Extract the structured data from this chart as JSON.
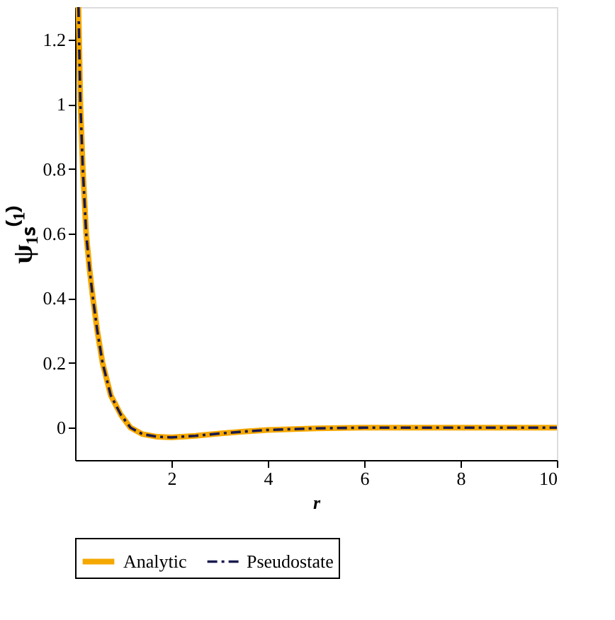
{
  "chart_data": {
    "type": "line",
    "xlabel": "r",
    "ylabel": "ψ₁ₛ⁽¹⁾",
    "xlim": [
      0,
      10
    ],
    "ylim": [
      -0.1,
      1.3
    ],
    "xticks": [
      2,
      4,
      6,
      8,
      10
    ],
    "yticks": [
      0,
      0.2,
      0.4,
      0.6,
      0.8,
      1,
      1.2
    ],
    "grid": false,
    "legend": "bottom",
    "marker": "none",
    "series": [
      {
        "name": "Analytic",
        "color": "#f5a800",
        "line_style": "solid",
        "x": [
          0.07,
          0.11,
          0.16,
          0.23,
          0.3,
          0.37,
          0.46,
          0.57,
          0.74,
          0.95,
          1.15,
          1.4,
          1.7,
          2,
          2.5,
          3,
          3.5,
          4,
          5,
          6,
          7,
          8,
          9,
          10
        ],
        "values": [
          1.3,
          1.0,
          0.8,
          0.6,
          0.49,
          0.4,
          0.3,
          0.2,
          0.1,
          0.04,
          0,
          -0.02,
          -0.028,
          -0.03,
          -0.025,
          -0.018,
          -0.012,
          -0.007,
          -0.002,
          0,
          0,
          0,
          0,
          0
        ]
      },
      {
        "name": "Pseudostate",
        "color": "#1a1a4e",
        "line_style": "dashed",
        "x": [
          0.07,
          0.11,
          0.16,
          0.23,
          0.3,
          0.37,
          0.46,
          0.57,
          0.74,
          0.95,
          1.15,
          1.4,
          1.7,
          2,
          2.5,
          3,
          3.5,
          4,
          5,
          6,
          7,
          8,
          9,
          10
        ],
        "values": [
          1.3,
          1.0,
          0.8,
          0.6,
          0.49,
          0.4,
          0.3,
          0.2,
          0.1,
          0.04,
          0,
          -0.02,
          -0.028,
          -0.03,
          -0.025,
          -0.018,
          -0.012,
          -0.007,
          -0.002,
          0,
          0,
          0,
          0,
          0
        ]
      }
    ]
  }
}
